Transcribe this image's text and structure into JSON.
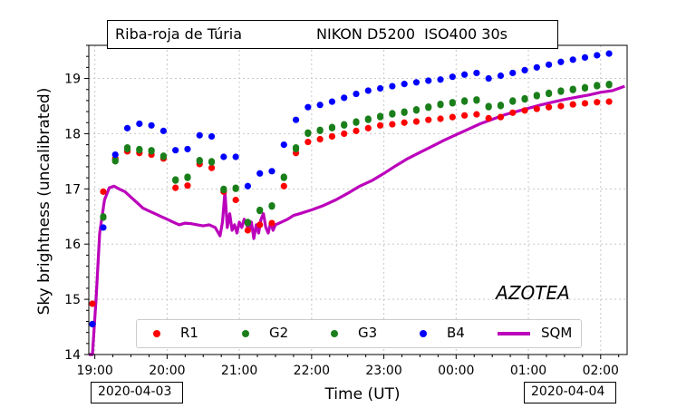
{
  "header": {
    "location": "Riba-roja de Túria",
    "camera": "NIKON D5200  ISO400 30s"
  },
  "annotation": "AZOTEA",
  "date_left": "2020-04-03",
  "date_right": "2020-04-04",
  "chart_data": {
    "type": "scatter",
    "xlabel": "Time (UT)",
    "ylabel": "Sky brightness (uncalibrated)",
    "xlim": [
      "18:55",
      "02:22"
    ],
    "ylim": [
      14,
      19.6
    ],
    "x_ticks": [
      "19:00",
      "20:00",
      "21:00",
      "22:00",
      "23:00",
      "00:00",
      "01:00",
      "02:00"
    ],
    "y_ticks": [
      14,
      15,
      16,
      17,
      18,
      19
    ],
    "legend_position": "bottom",
    "colors": {
      "R1": "#ff0000",
      "G2": "#1a7f1a",
      "G3": "#1a7f1a",
      "B4": "#0000ff",
      "SQM": "#bb00bb"
    },
    "series": [
      {
        "name": "R1",
        "kind": "points",
        "x": [
          "18:58",
          "19:07",
          "19:17",
          "19:27",
          "19:37",
          "19:47",
          "19:57",
          "20:07",
          "20:17",
          "20:27",
          "20:37",
          "20:47",
          "20:57",
          "21:07",
          "21:17",
          "21:27",
          "21:37",
          "21:47",
          "21:57",
          "22:07",
          "22:17",
          "22:27",
          "22:37",
          "22:47",
          "22:57",
          "23:07",
          "23:17",
          "23:27",
          "23:37",
          "23:47",
          "23:57",
          "00:07",
          "00:17",
          "00:27",
          "00:37",
          "00:47",
          "00:57",
          "01:07",
          "01:17",
          "01:27",
          "01:37",
          "01:47",
          "01:57",
          "02:07"
        ],
        "y": [
          14.92,
          16.95,
          17.55,
          17.68,
          17.65,
          17.62,
          17.55,
          17.02,
          17.06,
          17.45,
          17.38,
          16.95,
          16.8,
          16.25,
          16.35,
          16.38,
          17.05,
          17.65,
          17.85,
          17.9,
          17.95,
          18.0,
          18.05,
          18.1,
          18.15,
          18.17,
          18.2,
          18.22,
          18.25,
          18.27,
          18.3,
          18.33,
          18.35,
          18.28,
          18.3,
          18.38,
          18.42,
          18.45,
          18.48,
          18.5,
          18.53,
          18.55,
          18.57,
          18.58
        ]
      },
      {
        "name": "G2",
        "kind": "points",
        "x": [
          "18:58",
          "19:07",
          "19:17",
          "19:27",
          "19:37",
          "19:47",
          "19:57",
          "20:07",
          "20:17",
          "20:27",
          "20:37",
          "20:47",
          "20:57",
          "21:07",
          "21:17",
          "21:27",
          "21:37",
          "21:47",
          "21:57",
          "22:07",
          "22:17",
          "22:27",
          "22:37",
          "22:47",
          "22:57",
          "23:07",
          "23:17",
          "23:27",
          "23:37",
          "23:47",
          "23:57",
          "00:07",
          "00:17",
          "00:27",
          "00:37",
          "00:47",
          "00:57",
          "01:07",
          "01:17",
          "01:27",
          "01:37",
          "01:47",
          "01:57",
          "02:07"
        ],
        "y": [
          14.55,
          16.48,
          17.5,
          17.72,
          17.7,
          17.68,
          17.58,
          17.15,
          17.2,
          17.5,
          17.48,
          16.98,
          17.0,
          16.38,
          16.6,
          16.68,
          17.2,
          17.72,
          18.0,
          18.05,
          18.1,
          18.15,
          18.2,
          18.25,
          18.3,
          18.35,
          18.38,
          18.42,
          18.47,
          18.52,
          18.55,
          18.58,
          18.6,
          18.48,
          18.5,
          18.58,
          18.62,
          18.68,
          18.72,
          18.76,
          18.79,
          18.82,
          18.86,
          18.88
        ]
      },
      {
        "name": "G3",
        "kind": "points",
        "x": [
          "18:58",
          "19:07",
          "19:17",
          "19:27",
          "19:37",
          "19:47",
          "19:57",
          "20:07",
          "20:17",
          "20:27",
          "20:37",
          "20:47",
          "20:57",
          "21:07",
          "21:17",
          "21:27",
          "21:37",
          "21:47",
          "21:57",
          "22:07",
          "22:17",
          "22:27",
          "22:37",
          "22:47",
          "22:57",
          "23:07",
          "23:17",
          "23:27",
          "23:37",
          "23:47",
          "23:57",
          "00:07",
          "00:17",
          "00:27",
          "00:37",
          "00:47",
          "00:57",
          "01:07",
          "01:17",
          "01:27",
          "01:37",
          "01:47",
          "01:57",
          "02:07"
        ],
        "y": [
          14.55,
          16.5,
          17.52,
          17.75,
          17.72,
          17.7,
          17.6,
          17.17,
          17.22,
          17.52,
          17.5,
          17.0,
          17.02,
          16.4,
          16.62,
          16.7,
          17.22,
          17.75,
          18.02,
          18.07,
          18.12,
          18.17,
          18.22,
          18.27,
          18.32,
          18.37,
          18.4,
          18.44,
          18.49,
          18.54,
          18.57,
          18.6,
          18.62,
          18.5,
          18.52,
          18.6,
          18.64,
          18.7,
          18.74,
          18.78,
          18.81,
          18.84,
          18.88,
          18.9
        ]
      },
      {
        "name": "B4",
        "kind": "points",
        "x": [
          "18:58",
          "19:07",
          "19:17",
          "19:27",
          "19:37",
          "19:47",
          "19:57",
          "20:07",
          "20:17",
          "20:27",
          "20:37",
          "20:47",
          "20:57",
          "21:07",
          "21:17",
          "21:27",
          "21:37",
          "21:47",
          "21:57",
          "22:07",
          "22:17",
          "22:27",
          "22:37",
          "22:47",
          "22:57",
          "23:07",
          "23:17",
          "23:27",
          "23:37",
          "23:47",
          "23:57",
          "00:07",
          "00:17",
          "00:27",
          "00:37",
          "00:47",
          "00:57",
          "01:07",
          "01:17",
          "01:27",
          "01:37",
          "01:47",
          "01:57",
          "02:07"
        ],
        "y": [
          14.55,
          16.3,
          17.62,
          18.1,
          18.18,
          18.15,
          18.05,
          17.7,
          17.72,
          17.97,
          17.95,
          17.58,
          17.58,
          17.05,
          17.28,
          17.32,
          17.8,
          18.25,
          18.48,
          18.52,
          18.58,
          18.65,
          18.72,
          18.78,
          18.82,
          18.86,
          18.9,
          18.93,
          18.96,
          18.98,
          19.03,
          19.07,
          19.1,
          19.0,
          19.05,
          19.1,
          19.15,
          19.2,
          19.25,
          19.3,
          19.34,
          19.38,
          19.42,
          19.45
        ]
      },
      {
        "name": "SQM",
        "kind": "line",
        "x": [
          "18:55",
          "18:58",
          "19:01",
          "19:04",
          "19:08",
          "19:12",
          "19:16",
          "19:20",
          "19:25",
          "19:30",
          "19:35",
          "19:40",
          "19:45",
          "19:50",
          "19:55",
          "20:00",
          "20:05",
          "20:10",
          "20:15",
          "20:20",
          "20:25",
          "20:30",
          "20:35",
          "20:40",
          "20:44",
          "20:46",
          "20:48",
          "20:50",
          "20:52",
          "20:54",
          "20:56",
          "20:58",
          "21:00",
          "21:02",
          "21:04",
          "21:06",
          "21:08",
          "21:10",
          "21:12",
          "21:14",
          "21:16",
          "21:18",
          "21:20",
          "21:22",
          "21:24",
          "21:26",
          "21:28",
          "21:30",
          "21:35",
          "21:40",
          "21:45",
          "21:50",
          "22:00",
          "22:10",
          "22:20",
          "22:30",
          "22:40",
          "22:50",
          "23:00",
          "23:10",
          "23:20",
          "23:30",
          "23:40",
          "23:50",
          "00:00",
          "00:10",
          "00:20",
          "00:30",
          "00:40",
          "00:50",
          "01:00",
          "01:10",
          "01:20",
          "01:30",
          "01:40",
          "01:50",
          "02:00",
          "02:10",
          "02:20"
        ],
        "y": [
          13.3,
          14.0,
          15.0,
          16.2,
          16.8,
          17.02,
          17.05,
          17.0,
          16.95,
          16.85,
          16.75,
          16.65,
          16.6,
          16.55,
          16.5,
          16.45,
          16.4,
          16.35,
          16.38,
          16.37,
          16.35,
          16.33,
          16.35,
          16.3,
          16.15,
          16.4,
          16.95,
          16.3,
          16.55,
          16.25,
          16.35,
          16.2,
          16.4,
          16.3,
          16.45,
          16.35,
          16.25,
          16.4,
          16.1,
          16.35,
          16.2,
          16.45,
          16.55,
          16.3,
          16.2,
          16.4,
          16.25,
          16.35,
          16.4,
          16.45,
          16.52,
          16.55,
          16.62,
          16.7,
          16.8,
          16.92,
          17.05,
          17.15,
          17.28,
          17.42,
          17.55,
          17.66,
          17.77,
          17.88,
          17.98,
          18.08,
          18.18,
          18.26,
          18.34,
          18.4,
          18.46,
          18.52,
          18.57,
          18.62,
          18.66,
          18.7,
          18.75,
          18.78,
          18.86
        ]
      }
    ]
  }
}
